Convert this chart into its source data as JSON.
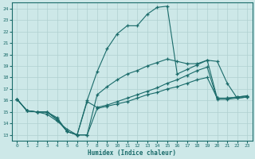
{
  "xlabel": "Humidex (Indice chaleur)",
  "xlim": [
    -0.5,
    23.5
  ],
  "ylim": [
    12.5,
    24.5
  ],
  "xticks": [
    0,
    1,
    2,
    3,
    4,
    5,
    6,
    7,
    8,
    9,
    10,
    11,
    12,
    13,
    14,
    15,
    16,
    17,
    18,
    19,
    20,
    21,
    22,
    23
  ],
  "yticks": [
    13,
    14,
    15,
    16,
    17,
    18,
    19,
    20,
    21,
    22,
    23,
    24
  ],
  "background_color": "#cde8e8",
  "grid_color": "#b0d0d0",
  "line_color": "#1a6b6a",
  "line1_solid_high": {
    "x": [
      0,
      1,
      2,
      3,
      4,
      5,
      6,
      7,
      8,
      9,
      10,
      11,
      12,
      13,
      14,
      15,
      16,
      17,
      18,
      19,
      20,
      21,
      22,
      23
    ],
    "y": [
      16.1,
      15.1,
      15.0,
      15.0,
      14.5,
      13.3,
      13.0,
      16.0,
      18.5,
      20.5,
      21.8,
      22.5,
      22.5,
      23.5,
      24.1,
      24.2,
      18.3,
      18.7,
      19.1,
      19.5,
      19.4,
      17.5,
      16.2,
      16.3
    ]
  },
  "line2_solid_low": {
    "x": [
      0,
      1,
      2,
      3,
      4,
      5,
      6,
      7,
      8,
      9,
      10,
      11,
      12,
      13,
      14,
      15,
      16,
      17,
      18,
      19,
      20,
      21,
      22,
      23
    ],
    "y": [
      16.1,
      15.1,
      15.0,
      14.8,
      14.2,
      13.5,
      13.0,
      13.0,
      15.3,
      15.5,
      15.7,
      15.9,
      16.2,
      16.5,
      16.7,
      17.0,
      17.2,
      17.5,
      17.8,
      18.0,
      16.2,
      16.2,
      16.3,
      16.4
    ]
  },
  "line3_solid_mid_upper": {
    "x": [
      0,
      1,
      2,
      3,
      4,
      5,
      6,
      7,
      8,
      9,
      10,
      11,
      12,
      13,
      14,
      15,
      16,
      17,
      18,
      19,
      20,
      21,
      22,
      23
    ],
    "y": [
      16.1,
      15.1,
      15.0,
      15.0,
      14.4,
      13.3,
      13.0,
      13.0,
      16.5,
      17.2,
      17.8,
      18.3,
      18.6,
      19.0,
      19.3,
      19.6,
      19.4,
      19.2,
      19.2,
      19.5,
      16.2,
      16.2,
      16.3,
      16.4
    ]
  },
  "line4_solid_mid_lower": {
    "x": [
      0,
      1,
      2,
      3,
      4,
      5,
      6,
      7,
      8,
      9,
      10,
      11,
      12,
      13,
      14,
      15,
      16,
      17,
      18,
      19,
      20,
      21,
      22,
      23
    ],
    "y": [
      16.1,
      15.1,
      15.0,
      15.0,
      14.3,
      13.3,
      13.0,
      15.9,
      15.4,
      15.6,
      15.9,
      16.2,
      16.5,
      16.8,
      17.1,
      17.5,
      17.8,
      18.2,
      18.6,
      18.9,
      16.1,
      16.1,
      16.2,
      16.3
    ]
  }
}
